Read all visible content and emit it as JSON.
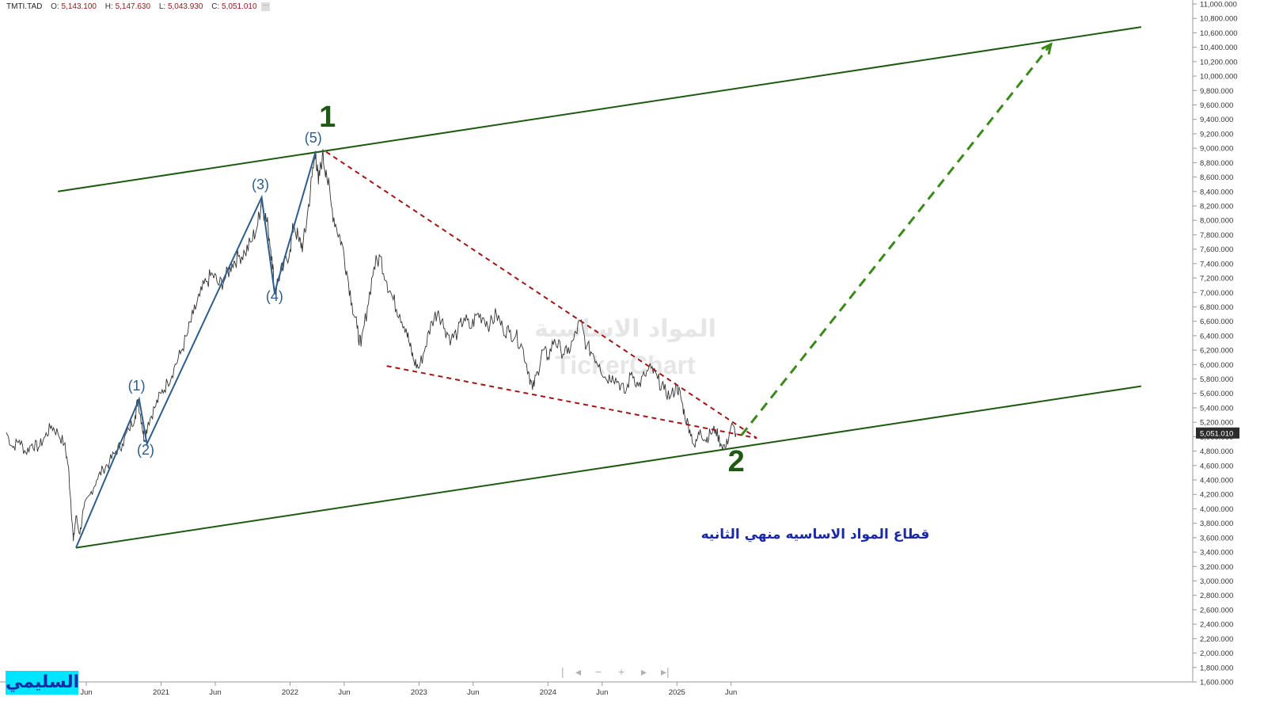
{
  "header": {
    "symbol": "TMTI.TAD",
    "open_label": "O:",
    "open": "5,143.100",
    "high_label": "H:",
    "high": "5,147.630",
    "low_label": "L:",
    "low": "5,043.930",
    "close_label": "C:",
    "close": "5,051.010",
    "more_icon": "ellipsis-icon"
  },
  "watermark": {
    "line1": "المواد الاساسية",
    "line2": "TickerChart"
  },
  "annotation": "قطاع المواد الاساسيه منهي الثانيه",
  "author": "السليمي",
  "nav": {
    "icons": [
      "prev-icon",
      "minus-icon",
      "plus-icon",
      "next-icon",
      "end-icon"
    ]
  },
  "colors": {
    "price": "#333333",
    "channel": "#1f5a12",
    "impulse": "#2f5d8c",
    "wedge": "#a31515",
    "projection": "#3a8a1a",
    "annotation": "#1b2aa6",
    "author_bg": "#00e5ff",
    "last_price_bg": "#2b2b2b"
  },
  "chart_data": {
    "type": "line",
    "y_ticks": [
      "1,600.000",
      "1,800.000",
      "2,000.000",
      "2,200.000",
      "2,400.000",
      "2,600.000",
      "2,800.000",
      "3,000.000",
      "3,200.000",
      "3,400.000",
      "3,600.000",
      "3,800.000",
      "4,000.000",
      "4,200.000",
      "4,400.000",
      "4,600.000",
      "4,800.000",
      "5,000.000",
      "5,200.000",
      "5,400.000",
      "5,600.000",
      "5,800.000",
      "6,000.000",
      "6,200.000",
      "6,400.000",
      "6,600.000",
      "6,800.000",
      "7,000.000",
      "7,200.000",
      "7,400.000",
      "7,600.000",
      "7,800.000",
      "8,000.000",
      "8,200.000",
      "8,400.000",
      "8,600.000",
      "8,800.000",
      "9,000.000",
      "9,200.000",
      "9,400.000",
      "9,600.000",
      "9,800.000",
      "10,000.000",
      "10,200.000",
      "10,400.000",
      "10,600.000",
      "10,800.000",
      "11,000.000"
    ],
    "ylim": [
      1600,
      11000
    ],
    "x_ticks": [
      {
        "label": "Jun",
        "t": 2020.42
      },
      {
        "label": "2021",
        "t": 2021.0
      },
      {
        "label": "Jun",
        "t": 2021.42
      },
      {
        "label": "2022",
        "t": 2022.0
      },
      {
        "label": "Jun",
        "t": 2022.42
      },
      {
        "label": "2023",
        "t": 2023.0
      },
      {
        "label": "Jun",
        "t": 2023.42
      },
      {
        "label": "2024",
        "t": 2024.0
      },
      {
        "label": "Jun",
        "t": 2024.42
      },
      {
        "label": "2025",
        "t": 2025.0
      },
      {
        "label": "Jun",
        "t": 2025.42
      }
    ],
    "xlim": [
      2019.8,
      2029.0
    ],
    "last_price": 5051.01,
    "last_price_label": "5,051.010",
    "price_series": [
      [
        2019.8,
        5060
      ],
      [
        2019.85,
        4850
      ],
      [
        2019.9,
        4950
      ],
      [
        2019.95,
        4780
      ],
      [
        2020.0,
        4900
      ],
      [
        2020.05,
        4850
      ],
      [
        2020.1,
        5000
      ],
      [
        2020.15,
        5150
      ],
      [
        2020.2,
        5050
      ],
      [
        2020.25,
        4900
      ],
      [
        2020.28,
        4600
      ],
      [
        2020.3,
        4100
      ],
      [
        2020.32,
        3550
      ],
      [
        2020.34,
        3900
      ],
      [
        2020.37,
        3650
      ],
      [
        2020.4,
        4000
      ],
      [
        2020.45,
        4200
      ],
      [
        2020.5,
        4400
      ],
      [
        2020.55,
        4550
      ],
      [
        2020.6,
        4650
      ],
      [
        2020.65,
        4800
      ],
      [
        2020.7,
        4900
      ],
      [
        2020.75,
        5100
      ],
      [
        2020.8,
        5300
      ],
      [
        2020.82,
        5520
      ],
      [
        2020.85,
        5200
      ],
      [
        2020.87,
        4950
      ],
      [
        2020.9,
        5200
      ],
      [
        2020.95,
        5400
      ],
      [
        2021.0,
        5600
      ],
      [
        2021.05,
        5750
      ],
      [
        2021.1,
        5950
      ],
      [
        2021.15,
        6150
      ],
      [
        2021.2,
        6400
      ],
      [
        2021.25,
        6700
      ],
      [
        2021.3,
        6950
      ],
      [
        2021.35,
        7150
      ],
      [
        2021.4,
        7250
      ],
      [
        2021.45,
        7100
      ],
      [
        2021.5,
        7200
      ],
      [
        2021.55,
        7400
      ],
      [
        2021.6,
        7500
      ],
      [
        2021.65,
        7550
      ],
      [
        2021.7,
        7700
      ],
      [
        2021.75,
        7950
      ],
      [
        2021.78,
        8300
      ],
      [
        2021.8,
        8100
      ],
      [
        2021.83,
        7900
      ],
      [
        2021.86,
        7500
      ],
      [
        2021.88,
        7000
      ],
      [
        2021.91,
        7200
      ],
      [
        2021.95,
        7350
      ],
      [
        2022.0,
        7600
      ],
      [
        2022.03,
        7950
      ],
      [
        2022.07,
        7700
      ],
      [
        2022.1,
        7650
      ],
      [
        2022.13,
        8000
      ],
      [
        2022.17,
        8600
      ],
      [
        2022.2,
        8950
      ],
      [
        2022.22,
        8500
      ],
      [
        2022.25,
        8900
      ],
      [
        2022.28,
        8700
      ],
      [
        2022.32,
        8200
      ],
      [
        2022.36,
        7900
      ],
      [
        2022.4,
        7700
      ],
      [
        2022.44,
        7300
      ],
      [
        2022.48,
        6850
      ],
      [
        2022.52,
        6500
      ],
      [
        2022.55,
        6250
      ],
      [
        2022.6,
        6800
      ],
      [
        2022.65,
        7350
      ],
      [
        2022.7,
        7500
      ],
      [
        2022.75,
        7150
      ],
      [
        2022.8,
        6900
      ],
      [
        2022.85,
        6700
      ],
      [
        2022.9,
        6500
      ],
      [
        2022.93,
        6250
      ],
      [
        2022.96,
        6050
      ],
      [
        2023.0,
        5950
      ],
      [
        2023.05,
        6250
      ],
      [
        2023.1,
        6600
      ],
      [
        2023.15,
        6750
      ],
      [
        2023.2,
        6500
      ],
      [
        2023.25,
        6350
      ],
      [
        2023.3,
        6450
      ],
      [
        2023.35,
        6650
      ],
      [
        2023.4,
        6500
      ],
      [
        2023.45,
        6700
      ],
      [
        2023.5,
        6650
      ],
      [
        2023.55,
        6550
      ],
      [
        2023.6,
        6700
      ],
      [
        2023.65,
        6500
      ],
      [
        2023.7,
        6450
      ],
      [
        2023.75,
        6400
      ],
      [
        2023.8,
        6250
      ],
      [
        2023.85,
        5900
      ],
      [
        2023.88,
        5650
      ],
      [
        2023.92,
        5900
      ],
      [
        2023.96,
        6200
      ],
      [
        2024.0,
        6100
      ],
      [
        2024.05,
        6350
      ],
      [
        2024.1,
        6200
      ],
      [
        2024.15,
        6150
      ],
      [
        2024.2,
        6350
      ],
      [
        2024.25,
        6600
      ],
      [
        2024.3,
        6250
      ],
      [
        2024.35,
        6150
      ],
      [
        2024.4,
        6000
      ],
      [
        2024.45,
        5800
      ],
      [
        2024.5,
        5850
      ],
      [
        2024.55,
        5750
      ],
      [
        2024.6,
        5600
      ],
      [
        2024.65,
        5900
      ],
      [
        2024.7,
        5700
      ],
      [
        2024.75,
        5850
      ],
      [
        2024.8,
        5950
      ],
      [
        2024.85,
        5800
      ],
      [
        2024.9,
        5650
      ],
      [
        2024.95,
        5550
      ],
      [
        2025.0,
        5700
      ],
      [
        2025.03,
        5550
      ],
      [
        2025.06,
        5300
      ],
      [
        2025.1,
        5100
      ],
      [
        2025.14,
        4850
      ],
      [
        2025.18,
        5100
      ],
      [
        2025.22,
        4950
      ],
      [
        2025.26,
        5050
      ],
      [
        2025.3,
        5100
      ],
      [
        2025.34,
        4900
      ],
      [
        2025.38,
        4850
      ],
      [
        2025.42,
        5150
      ],
      [
        2025.46,
        5050
      ]
    ],
    "channel_upper": [
      [
        2020.2,
        8400
      ],
      [
        2028.6,
        10680
      ]
    ],
    "channel_lower": [
      [
        2020.34,
        3460
      ],
      [
        2028.6,
        5700
      ]
    ],
    "impulse_path": [
      [
        2020.34,
        3460
      ],
      [
        2020.83,
        5520
      ],
      [
        2020.89,
        4900
      ],
      [
        2021.78,
        8320
      ],
      [
        2021.88,
        7000
      ],
      [
        2022.2,
        8960
      ]
    ],
    "wedge_upper": [
      [
        2022.28,
        8950
      ],
      [
        2025.62,
        4980
      ]
    ],
    "wedge_lower": [
      [
        2022.75,
        5980
      ],
      [
        2025.62,
        4980
      ]
    ],
    "projection": [
      [
        2025.5,
        5020
      ],
      [
        2027.9,
        10440
      ]
    ],
    "wave_labels": [
      {
        "label": "(1)",
        "t": 2020.81,
        "v": 5640,
        "size": "small"
      },
      {
        "label": "(2)",
        "t": 2020.88,
        "v": 4750,
        "size": "small"
      },
      {
        "label": "(3)",
        "t": 2021.77,
        "v": 8430,
        "size": "small"
      },
      {
        "label": "(4)",
        "t": 2021.88,
        "v": 6880,
        "size": "small"
      },
      {
        "label": "(5)",
        "t": 2022.18,
        "v": 9080,
        "size": "small"
      },
      {
        "label": "1",
        "t": 2022.29,
        "v": 9300,
        "size": "big"
      },
      {
        "label": "2",
        "t": 2025.46,
        "v": 4520,
        "size": "big"
      }
    ]
  }
}
